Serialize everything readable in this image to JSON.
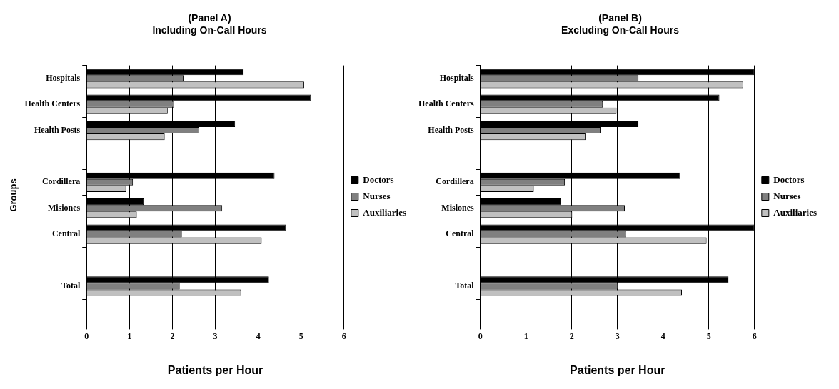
{
  "chart_data": [
    {
      "type": "bar",
      "orientation": "horizontal",
      "title": "(Panel A)",
      "subtitle": "Including On-Call Hours",
      "xlabel": "Patients per Hour",
      "ylabel": "Groups",
      "categories": [
        "Hospitals",
        "Health Centers",
        "Health Posts",
        null,
        "Cordillera",
        "Misiones",
        "Central",
        null,
        "Total",
        null
      ],
      "series": [
        {
          "name": "Doctors",
          "color": "#000000",
          "values": [
            3.66,
            5.23,
            3.46,
            null,
            4.38,
            1.33,
            4.65,
            null,
            4.25,
            null
          ]
        },
        {
          "name": "Nurses",
          "color": "#808080",
          "values": [
            2.26,
            2.04,
            2.62,
            null,
            1.08,
            3.16,
            2.22,
            null,
            2.17,
            null
          ]
        },
        {
          "name": "Auxiliaries",
          "color": "#c0c0c0",
          "values": [
            5.07,
            1.89,
            1.82,
            null,
            0.92,
            1.17,
            4.08,
            null,
            3.6,
            null
          ]
        }
      ],
      "xlim": [
        0,
        6
      ],
      "xticks": [
        0,
        1,
        2,
        3,
        4,
        5,
        6
      ],
      "grid": "x",
      "legend": "right"
    },
    {
      "type": "bar",
      "orientation": "horizontal",
      "title": "(Panel B)",
      "subtitle": "Excluding On-Call Hours",
      "xlabel": "Patients per Hour",
      "categories": [
        "Hospitals",
        "Health Centers",
        "Health Posts",
        null,
        "Cordillera",
        "Misiones",
        "Central",
        null,
        "Total",
        null
      ],
      "series": [
        {
          "name": "Doctors",
          "color": "#000000",
          "values": [
            6.0,
            5.23,
            3.46,
            null,
            4.37,
            1.77,
            6.0,
            null,
            5.43,
            null
          ]
        },
        {
          "name": "Nurses",
          "color": "#808080",
          "values": [
            3.46,
            2.68,
            2.63,
            null,
            1.85,
            3.16,
            3.19,
            null,
            3.01,
            null
          ]
        },
        {
          "name": "Auxiliaries",
          "color": "#c0c0c0",
          "values": [
            5.75,
            2.98,
            2.3,
            null,
            1.17,
            2.01,
            4.95,
            null,
            4.41,
            null
          ]
        }
      ],
      "xlim": [
        0,
        6
      ],
      "xticks": [
        0,
        1,
        2,
        3,
        4,
        5,
        6
      ],
      "grid": "x",
      "legend": "right"
    }
  ]
}
